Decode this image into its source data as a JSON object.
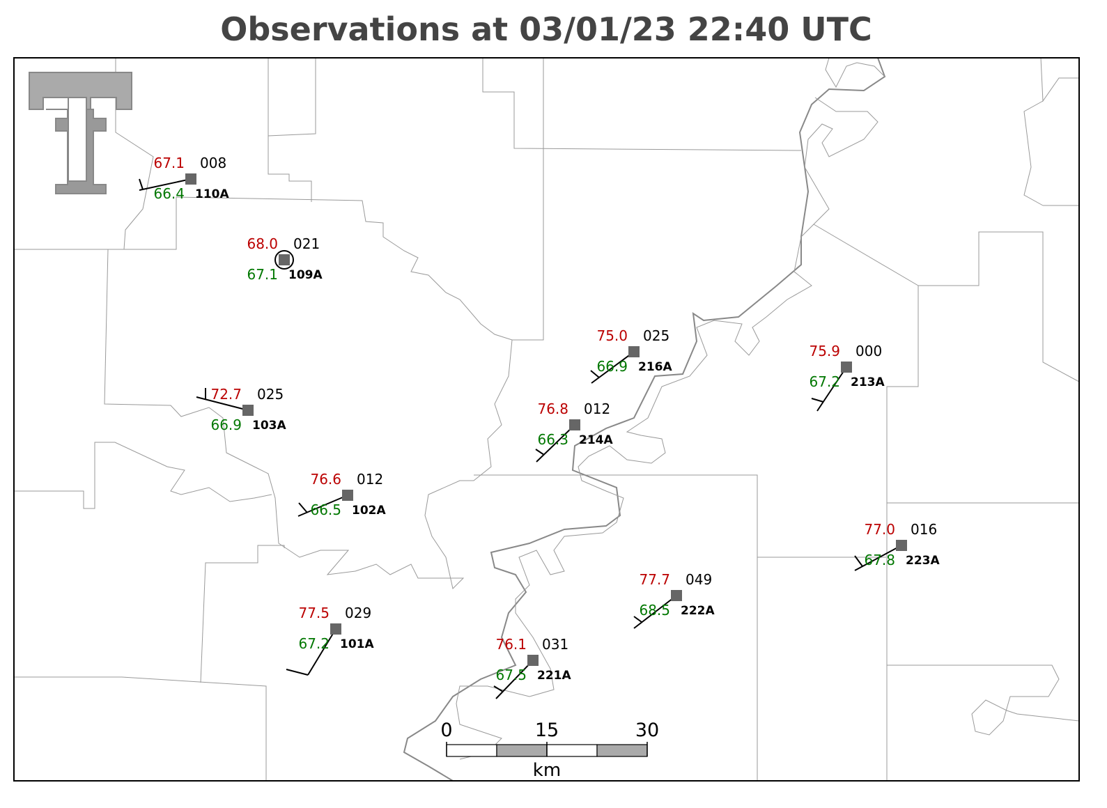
{
  "title": "Observations at 03/01/23 22:40 UTC",
  "stations": [
    {
      "temperature": "67.1",
      "pressure": "008",
      "dewpoint": "66.4",
      "id": "110A"
    },
    {
      "temperature": "68.0",
      "pressure": "021",
      "dewpoint": "67.1",
      "id": "109A"
    },
    {
      "temperature": "72.7",
      "pressure": "025",
      "dewpoint": "66.9",
      "id": "103A"
    },
    {
      "temperature": "76.6",
      "pressure": "012",
      "dewpoint": "66.5",
      "id": "102A"
    },
    {
      "temperature": "75.0",
      "pressure": "025",
      "dewpoint": "66.9",
      "id": "216A"
    },
    {
      "temperature": "76.8",
      "pressure": "012",
      "dewpoint": "66.3",
      "id": "214A"
    },
    {
      "temperature": "75.9",
      "pressure": "000",
      "dewpoint": "67.2",
      "id": "213A"
    },
    {
      "temperature": "77.0",
      "pressure": "016",
      "dewpoint": "67.8",
      "id": "223A"
    },
    {
      "temperature": "77.7",
      "pressure": "049",
      "dewpoint": "68.5",
      "id": "222A"
    },
    {
      "temperature": "77.5",
      "pressure": "029",
      "dewpoint": "67.2",
      "id": "101A"
    },
    {
      "temperature": "76.1",
      "pressure": "031",
      "dewpoint": "67.5",
      "id": "221A"
    }
  ],
  "scale_bar": {
    "ticks": [
      0,
      15,
      30
    ],
    "unit": "km"
  }
}
